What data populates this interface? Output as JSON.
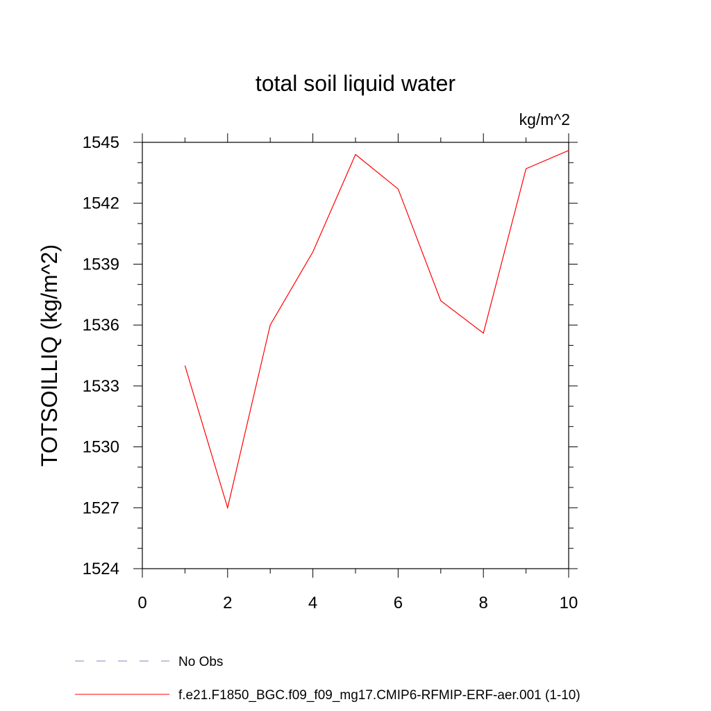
{
  "chart_data": {
    "type": "line",
    "title": "total soil liquid water",
    "units": "kg/m^2",
    "xlabel": "",
    "ylabel": "TOTSOILLIQ  (kg/m^2)",
    "xlim": [
      0,
      10
    ],
    "ylim": [
      1524,
      1545
    ],
    "xticks": [
      0,
      2,
      4,
      6,
      8,
      10
    ],
    "xtick_labels": [
      "0",
      "2",
      "4",
      "6",
      "8",
      "10"
    ],
    "yticks": [
      1524,
      1527,
      1530,
      1533,
      1536,
      1539,
      1542,
      1545
    ],
    "ytick_labels": [
      "1524",
      "1527",
      "1530",
      "1533",
      "1536",
      "1539",
      "1542",
      "1545"
    ],
    "series": [
      {
        "name": "f.e21.F1850_BGC.f09_f09_mg17.CMIP6-RFMIP-ERF-aer.001 (1-10)",
        "color": "#ff0000",
        "style": "solid",
        "x": [
          1,
          2,
          3,
          4,
          5,
          6,
          7,
          8,
          9,
          10
        ],
        "values": [
          1534.0,
          1527.0,
          1536.0,
          1539.6,
          1544.4,
          1542.7,
          1537.2,
          1535.6,
          1543.7,
          1544.6
        ]
      }
    ],
    "legend": [
      {
        "label": "No Obs",
        "color": "#8080c0",
        "style": "dashed"
      },
      {
        "label": "f.e21.F1850_BGC.f09_f09_mg17.CMIP6-RFMIP-ERF-aer.001 (1-10)",
        "color": "#ff0000",
        "style": "solid"
      }
    ],
    "legend_position": "bottom-left"
  }
}
